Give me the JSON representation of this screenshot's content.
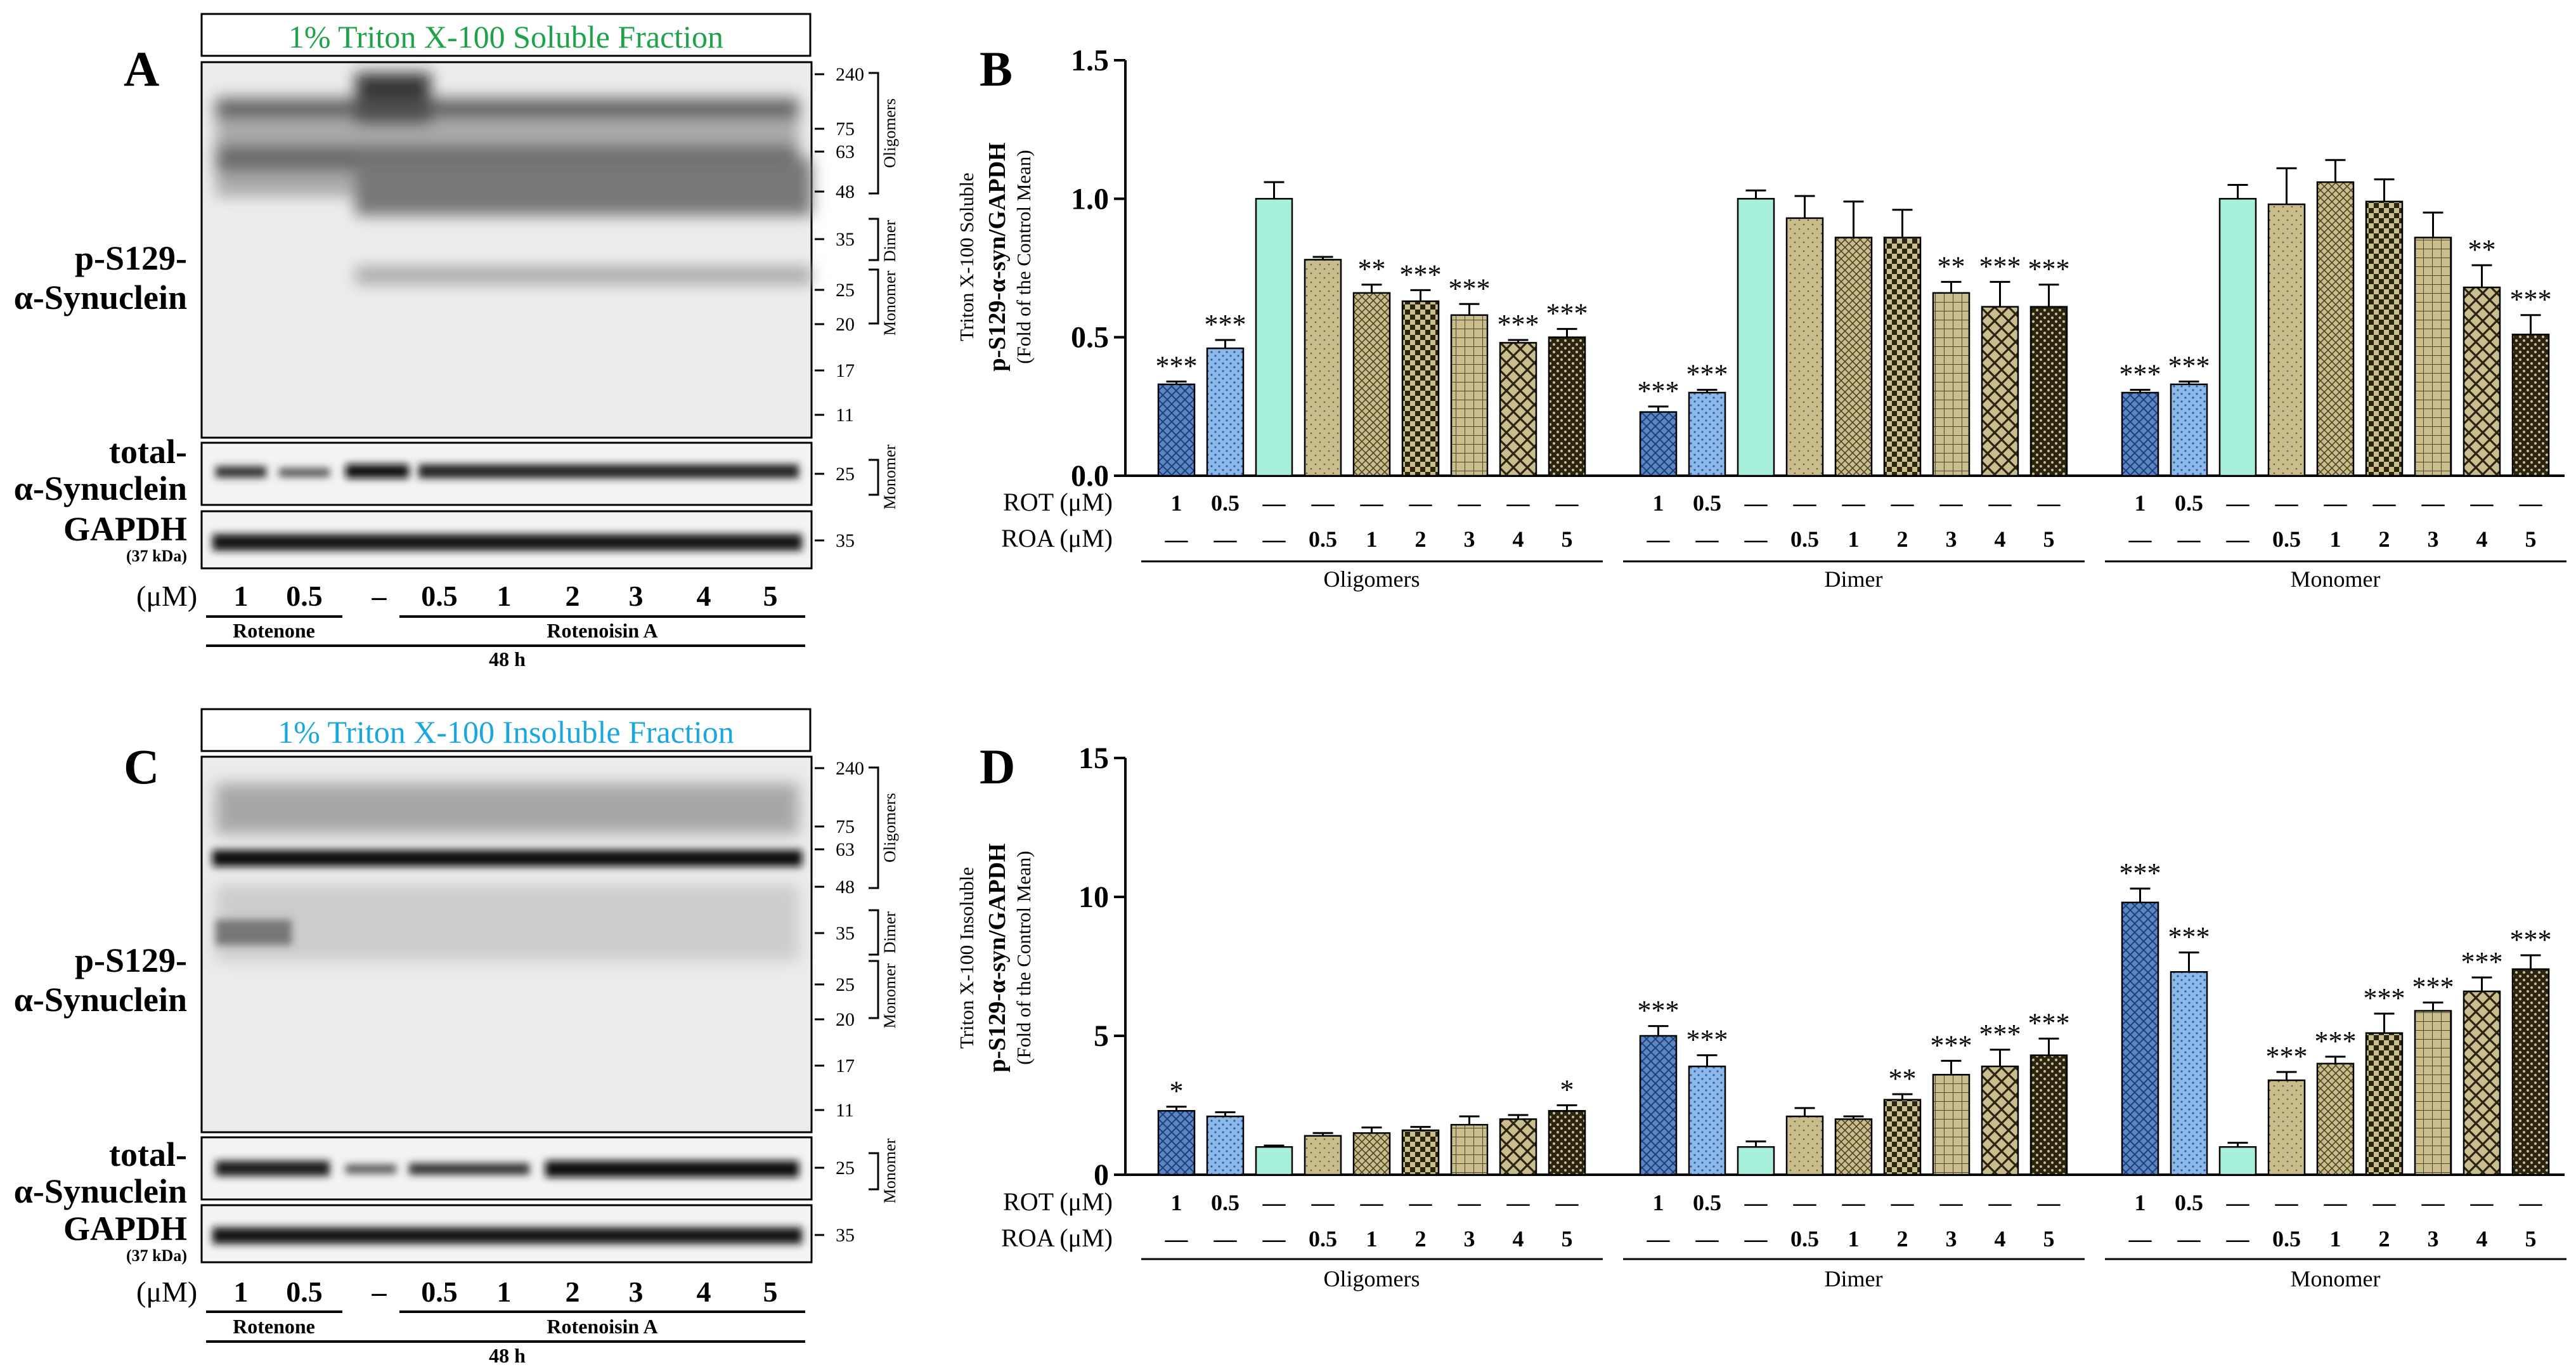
{
  "panels": {
    "A": {
      "letter": "A",
      "fraction_title": "1% Triton X-100 Soluble Fraction",
      "title_color": "#1fa24a",
      "p_label_1": "p-S129-",
      "p_label_2": "α-Synuclein",
      "total_label_1": "total-",
      "total_label_2": "α-Synuclein",
      "gapdh_label": "GAPDH",
      "gapdh_kda": "(37 kDa)",
      "markers": [
        "240",
        "75",
        "63",
        "48",
        "35",
        "25",
        "20",
        "17",
        "11"
      ],
      "bracket_labels": [
        "Oligomers",
        "Dimer",
        "Monomer"
      ],
      "total_marker": "25",
      "total_bracket": "Monomer",
      "gapdh_marker": "35",
      "dose_unit": "(μM)",
      "doses": [
        "1",
        "0.5",
        "–",
        "0.5",
        "1",
        "2",
        "3",
        "4",
        "5"
      ],
      "group_rotenone": "Rotenone",
      "group_roa": "Rotenoisin A",
      "time": "48 h"
    },
    "C": {
      "letter": "C",
      "fraction_title": "1% Triton X-100 Insoluble Fraction",
      "title_color": "#1aa7e0",
      "p_label_1": "p-S129-",
      "p_label_2": "α-Synuclein",
      "total_label_1": "total-",
      "total_label_2": "α-Synuclein",
      "gapdh_label": "GAPDH",
      "gapdh_kda": "(37 kDa)",
      "markers": [
        "240",
        "75",
        "63",
        "48",
        "35",
        "25",
        "20",
        "17",
        "11"
      ],
      "bracket_labels": [
        "Oligomers",
        "Dimer",
        "Monomer"
      ],
      "total_marker": "25",
      "total_bracket": "Monomer",
      "gapdh_marker": "35",
      "dose_unit": "(μM)",
      "doses": [
        "1",
        "0.5",
        "–",
        "0.5",
        "1",
        "2",
        "3",
        "4",
        "5"
      ],
      "group_rotenone": "Rotenone",
      "group_roa": "Rotenoisin A",
      "time": "48 h"
    }
  },
  "chart_data": [
    {
      "panel": "B",
      "type": "bar",
      "ylabel_1": "Triton X-100 Soluble",
      "ylabel_2": "p-S129-α-syn/GAPDH",
      "ylabel_3": "(Fold of the Control Mean)",
      "ylim": [
        0,
        1.5
      ],
      "yticks": [
        "0.0",
        "0.5",
        "1.0",
        "1.5"
      ],
      "ytick_values": [
        0,
        0.5,
        1.0,
        1.5
      ],
      "row_rot_label": "ROT (μM)",
      "row_roa_label": "ROA (μM)",
      "rot_values": [
        "1",
        "0.5",
        "—",
        "—",
        "—",
        "—",
        "—",
        "—",
        "—"
      ],
      "roa_values": [
        "—",
        "—",
        "—",
        "0.5",
        "1",
        "2",
        "3",
        "4",
        "5"
      ],
      "groups": [
        {
          "name": "Oligomers",
          "values": [
            0.33,
            0.46,
            1.0,
            0.78,
            0.66,
            0.63,
            0.58,
            0.48,
            0.5
          ],
          "errors": [
            0.01,
            0.03,
            0.06,
            0.01,
            0.03,
            0.04,
            0.04,
            0.01,
            0.03
          ],
          "sig": [
            "***",
            "***",
            "",
            "",
            "**",
            "***",
            "***",
            "***",
            "***"
          ]
        },
        {
          "name": "Dimer",
          "values": [
            0.23,
            0.3,
            1.0,
            0.93,
            0.86,
            0.86,
            0.66,
            0.61,
            0.61
          ],
          "errors": [
            0.02,
            0.01,
            0.03,
            0.08,
            0.13,
            0.1,
            0.04,
            0.09,
            0.08
          ],
          "sig": [
            "***",
            "***",
            "",
            "",
            "",
            "",
            "**",
            "***",
            "***"
          ]
        },
        {
          "name": "Monomer",
          "values": [
            0.3,
            0.33,
            1.0,
            0.98,
            1.06,
            0.99,
            0.86,
            0.68,
            0.51
          ],
          "errors": [
            0.01,
            0.01,
            0.05,
            0.13,
            0.08,
            0.08,
            0.09,
            0.08,
            0.07
          ],
          "sig": [
            "***",
            "***",
            "",
            "",
            "",
            "",
            "",
            "**",
            "***"
          ]
        }
      ]
    },
    {
      "panel": "D",
      "type": "bar",
      "ylabel_1": "Triton X-100 Insoluble",
      "ylabel_2": "p-S129-α-syn/GAPDH",
      "ylabel_3": "(Fold of the Control  Mean)",
      "ylim": [
        0,
        15
      ],
      "yticks": [
        "0",
        "5",
        "10",
        "15"
      ],
      "ytick_values": [
        0,
        5,
        10,
        15
      ],
      "row_rot_label": "ROT (μM)",
      "row_roa_label": "ROA (μM)",
      "rot_values": [
        "1",
        "0.5",
        "—",
        "—",
        "—",
        "—",
        "—",
        "—",
        "—"
      ],
      "roa_values": [
        "—",
        "—",
        "—",
        "0.5",
        "1",
        "2",
        "3",
        "4",
        "5"
      ],
      "groups": [
        {
          "name": "Oligomers",
          "values": [
            2.3,
            2.1,
            1.0,
            1.4,
            1.5,
            1.6,
            1.8,
            2.0,
            2.3
          ],
          "errors": [
            0.15,
            0.15,
            0.05,
            0.1,
            0.2,
            0.12,
            0.3,
            0.15,
            0.2
          ],
          "sig": [
            "*",
            "",
            "",
            "",
            "",
            "",
            "",
            "",
            "*"
          ]
        },
        {
          "name": "Dimer",
          "values": [
            5.0,
            3.9,
            1.0,
            2.1,
            2.0,
            2.7,
            3.6,
            3.9,
            4.3
          ],
          "errors": [
            0.35,
            0.4,
            0.2,
            0.3,
            0.1,
            0.2,
            0.5,
            0.6,
            0.6
          ],
          "sig": [
            "***",
            "***",
            "",
            "",
            "",
            "**",
            "***",
            "***",
            "***"
          ]
        },
        {
          "name": "Monomer",
          "values": [
            9.8,
            7.3,
            1.0,
            3.4,
            4.0,
            5.1,
            5.9,
            6.6,
            7.4
          ],
          "errors": [
            0.5,
            0.7,
            0.15,
            0.3,
            0.25,
            0.7,
            0.3,
            0.5,
            0.5
          ],
          "sig": [
            "***",
            "***",
            "",
            "***",
            "***",
            "***",
            "***",
            "***",
            "***"
          ]
        }
      ]
    }
  ],
  "colors": {
    "rot1": "#5b86c4",
    "rot05": "#8db8ea",
    "control": "#a6f0dc",
    "roa": "#c9bd8e",
    "axis": "#000000"
  }
}
